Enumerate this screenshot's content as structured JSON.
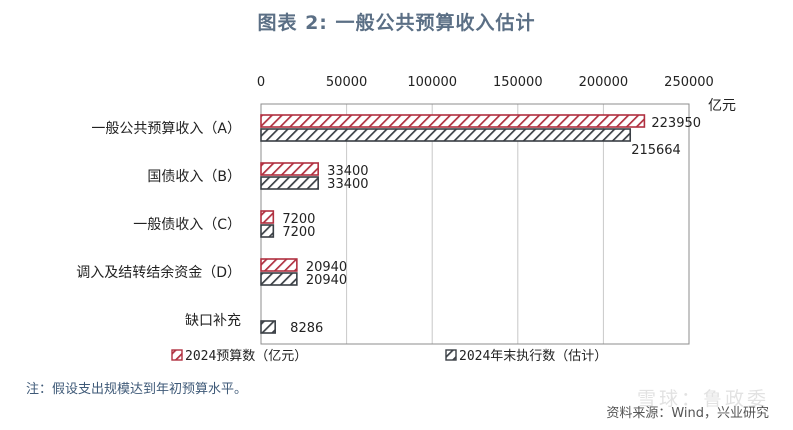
{
  "title": "图表 2:   一般公共预算收入估计",
  "note": "注：假设支出规模达到年初预算水平。",
  "source": "资料来源：Wind，兴业研究",
  "watermark": "雪球：鲁政委",
  "colors": {
    "series_a": "#c0392b",
    "series_b": "#3a3f45",
    "axis": "#8c8c8c",
    "grid": "#c8c8c8",
    "text": "#222222"
  },
  "chart_data": {
    "type": "bar",
    "orientation": "horizontal",
    "unit": "亿元",
    "categories": [
      "一般公共预算收入（A）",
      "国债收入（B）",
      "一般债收入（C）",
      "调入及结转结余资金（D）",
      "缺口补充"
    ],
    "xlim": [
      0,
      250000
    ],
    "xticks": [
      0,
      50000,
      100000,
      150000,
      200000,
      250000
    ],
    "grid": "vertical",
    "legend_position": "bottom",
    "series": [
      {
        "name": "2024预算数（亿元）",
        "values": [
          223950,
          33400,
          7200,
          20940,
          null
        ],
        "labels": [
          "223950",
          "33400",
          "7200",
          "20940",
          ""
        ]
      },
      {
        "name": "2024年末执行数（估计）",
        "values": [
          215664,
          33400,
          7200,
          20940,
          8286
        ],
        "labels": [
          "215664",
          "33400",
          "7200",
          "20940",
          "8286"
        ]
      }
    ]
  }
}
